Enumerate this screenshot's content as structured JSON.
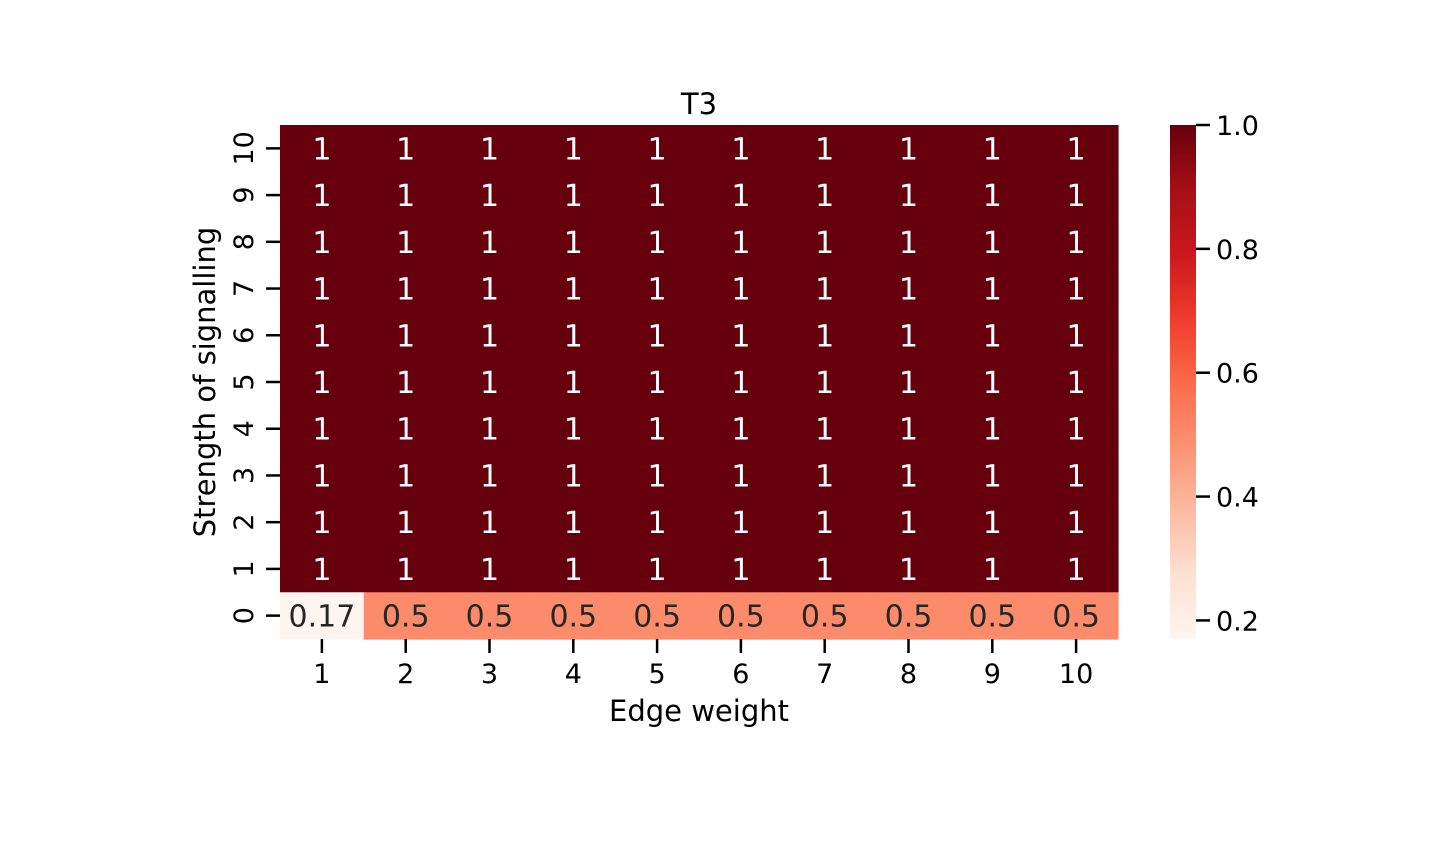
{
  "chart_data": {
    "type": "heatmap",
    "title": "T3",
    "xlabel": "Edge weight",
    "ylabel": "Strength of signalling",
    "x_categories": [
      "1",
      "2",
      "3",
      "4",
      "5",
      "6",
      "7",
      "8",
      "9",
      "10"
    ],
    "y_categories": [
      "10",
      "9",
      "8",
      "7",
      "6",
      "5",
      "4",
      "3",
      "2",
      "1",
      "0"
    ],
    "values": [
      [
        1,
        1,
        1,
        1,
        1,
        1,
        1,
        1,
        1,
        1
      ],
      [
        1,
        1,
        1,
        1,
        1,
        1,
        1,
        1,
        1,
        1
      ],
      [
        1,
        1,
        1,
        1,
        1,
        1,
        1,
        1,
        1,
        1
      ],
      [
        1,
        1,
        1,
        1,
        1,
        1,
        1,
        1,
        1,
        1
      ],
      [
        1,
        1,
        1,
        1,
        1,
        1,
        1,
        1,
        1,
        1
      ],
      [
        1,
        1,
        1,
        1,
        1,
        1,
        1,
        1,
        1,
        1
      ],
      [
        1,
        1,
        1,
        1,
        1,
        1,
        1,
        1,
        1,
        1
      ],
      [
        1,
        1,
        1,
        1,
        1,
        1,
        1,
        1,
        1,
        1
      ],
      [
        1,
        1,
        1,
        1,
        1,
        1,
        1,
        1,
        1,
        1
      ],
      [
        1,
        1,
        1,
        1,
        1,
        1,
        1,
        1,
        1,
        1
      ],
      [
        0.17,
        0.5,
        0.5,
        0.5,
        0.5,
        0.5,
        0.5,
        0.5,
        0.5,
        0.5
      ]
    ],
    "colorbar": {
      "range": [
        0.17,
        1.0
      ],
      "ticks": [
        0.2,
        0.4,
        0.6,
        0.8,
        1.0
      ],
      "tick_labels": [
        "0.2",
        "0.4",
        "0.6",
        "0.8",
        "1.0"
      ],
      "colormap": "Reds",
      "colors": [
        "#fff5f0",
        "#fee0d2",
        "#fcbba1",
        "#fc9272",
        "#fb6a4a",
        "#ef3b2c",
        "#cb181d",
        "#a50f15",
        "#67000d"
      ]
    },
    "annotations": true,
    "grid": false
  }
}
